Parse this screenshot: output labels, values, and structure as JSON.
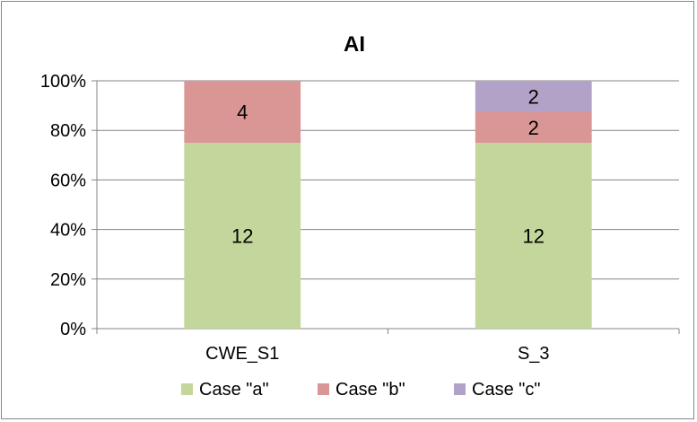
{
  "chart_data": {
    "type": "bar",
    "stacked": true,
    "normalized": true,
    "title": "AI",
    "xlabel": "",
    "ylabel": "",
    "categories": [
      "CWE_S1",
      "S_3"
    ],
    "series": [
      {
        "name": "Case \"a\"",
        "values": [
          12,
          12
        ],
        "color": "#c3d69b"
      },
      {
        "name": "Case \"b\"",
        "values": [
          4,
          2
        ],
        "color": "#d99694"
      },
      {
        "name": "Case \"c\"",
        "values": [
          0,
          2
        ],
        "color": "#b3a2c7"
      }
    ],
    "data_labels": [
      [
        "12",
        "12"
      ],
      [
        "4",
        "2"
      ],
      [
        "",
        "2"
      ]
    ],
    "yticks": [
      "0%",
      "20%",
      "40%",
      "60%",
      "80%",
      "100%"
    ],
    "ylim": [
      0,
      100
    ],
    "grid": true,
    "legend_position": "bottom"
  }
}
